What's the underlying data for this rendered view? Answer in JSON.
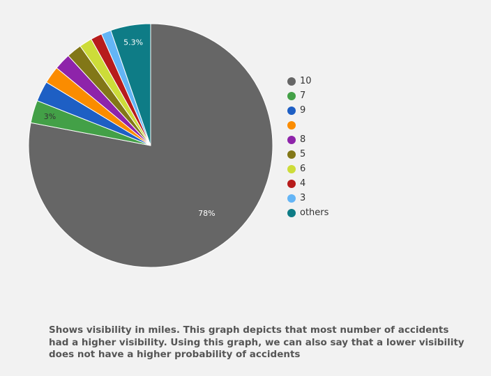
{
  "chart_data": {
    "type": "pie",
    "categories": [
      "10",
      "7",
      "9",
      "",
      "8",
      "5",
      "6",
      "4",
      "3",
      "others"
    ],
    "values": [
      78,
      3,
      2.7,
      2.3,
      2.2,
      2,
      1.7,
      1.5,
      1.3,
      5.3
    ],
    "unit": "%",
    "colors": [
      "#666666",
      "#43a047",
      "#1e5fc4",
      "#fb8c00",
      "#8e24aa",
      "#827717",
      "#cddc39",
      "#b71c1c",
      "#64b5f6",
      "#0e7c86"
    ],
    "slice_labels": [
      {
        "index": 0,
        "text": "78%",
        "color": "#ffffff"
      },
      {
        "index": 1,
        "text": "3%",
        "color": "#333333"
      },
      {
        "index": 9,
        "text": "5.3%",
        "color": "#ffffff"
      }
    ],
    "legend_position": "right"
  },
  "caption": "Shows visibility in miles. This graph depicts that most number of accidents had a higher visibility. Using this graph, we can also say that a lower visibility does not have a higher probability of accidents"
}
